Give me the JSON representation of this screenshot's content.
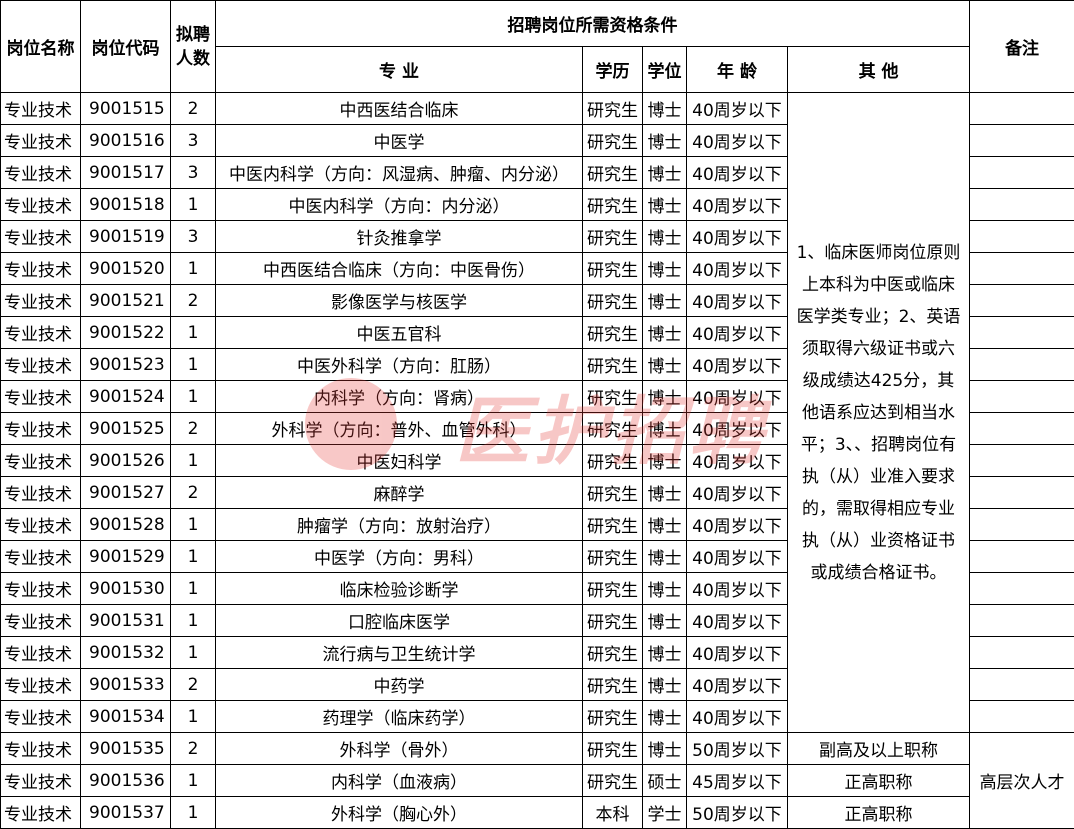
{
  "header": {
    "col_name": "岗位名称",
    "col_code": "岗位代码",
    "col_count": "拟聘人数",
    "group": "招聘岗位所需资格条件",
    "col_major": "专 业",
    "col_edu": "学历",
    "col_degree": "学位",
    "col_age": "年 龄",
    "col_other": "其 他",
    "col_remark": "备注"
  },
  "rows": [
    {
      "name": "专业技术",
      "code": "9001515",
      "count": "2",
      "major": "中西医结合临床",
      "edu": "研究生",
      "degree": "博士",
      "age": "40周岁以下"
    },
    {
      "name": "专业技术",
      "code": "9001516",
      "count": "3",
      "major": "中医学",
      "edu": "研究生",
      "degree": "博士",
      "age": "40周岁以下"
    },
    {
      "name": "专业技术",
      "code": "9001517",
      "count": "3",
      "major": "中医内科学（方向：风湿病、肿瘤、内分泌）",
      "edu": "研究生",
      "degree": "博士",
      "age": "40周岁以下"
    },
    {
      "name": "专业技术",
      "code": "9001518",
      "count": "1",
      "major": "中医内科学（方向：内分泌）",
      "edu": "研究生",
      "degree": "博士",
      "age": "40周岁以下"
    },
    {
      "name": "专业技术",
      "code": "9001519",
      "count": "3",
      "major": "针灸推拿学",
      "edu": "研究生",
      "degree": "博士",
      "age": "40周岁以下"
    },
    {
      "name": "专业技术",
      "code": "9001520",
      "count": "1",
      "major": "中西医结合临床（方向：中医骨伤）",
      "edu": "研究生",
      "degree": "博士",
      "age": "40周岁以下"
    },
    {
      "name": "专业技术",
      "code": "9001521",
      "count": "2",
      "major": "影像医学与核医学",
      "edu": "研究生",
      "degree": "博士",
      "age": "40周岁以下"
    },
    {
      "name": "专业技术",
      "code": "9001522",
      "count": "1",
      "major": "中医五官科",
      "edu": "研究生",
      "degree": "博士",
      "age": "40周岁以下"
    },
    {
      "name": "专业技术",
      "code": "9001523",
      "count": "1",
      "major": "中医外科学（方向：肛肠）",
      "edu": "研究生",
      "degree": "博士",
      "age": "40周岁以下"
    },
    {
      "name": "专业技术",
      "code": "9001524",
      "count": "1",
      "major": "内科学（方向：肾病）",
      "edu": "研究生",
      "degree": "博士",
      "age": "40周岁以下"
    },
    {
      "name": "专业技术",
      "code": "9001525",
      "count": "2",
      "major": "外科学（方向：普外、血管外科）",
      "edu": "研究生",
      "degree": "博士",
      "age": "40周岁以下"
    },
    {
      "name": "专业技术",
      "code": "9001526",
      "count": "1",
      "major": "中医妇科学",
      "edu": "研究生",
      "degree": "博士",
      "age": "40周岁以下"
    },
    {
      "name": "专业技术",
      "code": "9001527",
      "count": "2",
      "major": "麻醉学",
      "edu": "研究生",
      "degree": "博士",
      "age": "40周岁以下"
    },
    {
      "name": "专业技术",
      "code": "9001528",
      "count": "1",
      "major": "肿瘤学（方向：放射治疗）",
      "edu": "研究生",
      "degree": "博士",
      "age": "40周岁以下"
    },
    {
      "name": "专业技术",
      "code": "9001529",
      "count": "1",
      "major": "中医学（方向：男科）",
      "edu": "研究生",
      "degree": "博士",
      "age": "40周岁以下"
    },
    {
      "name": "专业技术",
      "code": "9001530",
      "count": "1",
      "major": "临床检验诊断学",
      "edu": "研究生",
      "degree": "博士",
      "age": "40周岁以下"
    },
    {
      "name": "专业技术",
      "code": "9001531",
      "count": "1",
      "major": "口腔临床医学",
      "edu": "研究生",
      "degree": "博士",
      "age": "40周岁以下"
    },
    {
      "name": "专业技术",
      "code": "9001532",
      "count": "1",
      "major": "流行病与卫生统计学",
      "edu": "研究生",
      "degree": "博士",
      "age": "40周岁以下"
    },
    {
      "name": "专业技术",
      "code": "9001533",
      "count": "2",
      "major": "中药学",
      "edu": "研究生",
      "degree": "博士",
      "age": "40周岁以下"
    },
    {
      "name": "专业技术",
      "code": "9001534",
      "count": "1",
      "major": "药理学（临床药学）",
      "edu": "研究生",
      "degree": "博士",
      "age": "40周岁以下"
    },
    {
      "name": "专业技术",
      "code": "9001535",
      "count": "2",
      "major": "外科学（骨外）",
      "edu": "研究生",
      "degree": "博士",
      "age": "50周岁以下",
      "other": "副高及以上职称"
    },
    {
      "name": "专业技术",
      "code": "9001536",
      "count": "1",
      "major": "内科学（血液病）",
      "edu": "研究生",
      "degree": "硕士",
      "age": "45周岁以下",
      "other": "正高职称"
    },
    {
      "name": "专业技术",
      "code": "9001537",
      "count": "1",
      "major": "外科学（胸心外）",
      "edu": "本科",
      "degree": "学士",
      "age": "50周岁以下",
      "other": "正高职称"
    }
  ],
  "shared_other_note": "1、临床医师岗位原则上本科为中医或临床医学类专业；2、英语须取得六级证书或六级成绩达425分，其他语系应达到相当水平；3、、招聘岗位有执（从）业准入要求的，需取得相应专业执（从）业资格证书或成绩合格证书。",
  "shared_remark": "高层次人才",
  "watermark": "医护招聘"
}
